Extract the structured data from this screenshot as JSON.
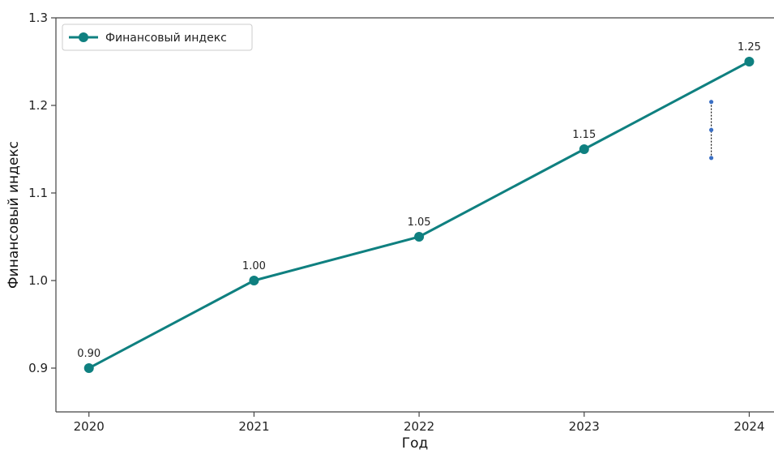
{
  "chart_data": {
    "type": "line",
    "x": [
      2020,
      2021,
      2022,
      2023,
      2024
    ],
    "series": [
      {
        "name": "Финансовый индекс",
        "values": [
          0.9,
          1.0,
          1.05,
          1.15,
          1.25
        ],
        "data_labels": [
          "0.90",
          "1.00",
          "1.05",
          "1.15",
          "1.25"
        ],
        "color": "#0f8080"
      }
    ],
    "xlabel": "Год",
    "ylabel": "Финансовый индекс",
    "xlim": [
      2019.8,
      2024.15
    ],
    "ylim": [
      0.85,
      1.3
    ],
    "xticks": [
      "2020",
      "2021",
      "2022",
      "2023",
      "2024"
    ],
    "yticks": [
      "0.9",
      "1.0",
      "1.1",
      "1.2",
      "1.3"
    ],
    "ytick_values": [
      0.9,
      1.0,
      1.1,
      1.2,
      1.3
    ],
    "grid": false,
    "legend_position": "top-left",
    "annotation": {
      "type": "error-bar",
      "x": 2023.77,
      "y_low": 1.14,
      "y_mid": 1.172,
      "y_high": 1.204,
      "color": "#3a6fc4"
    }
  }
}
